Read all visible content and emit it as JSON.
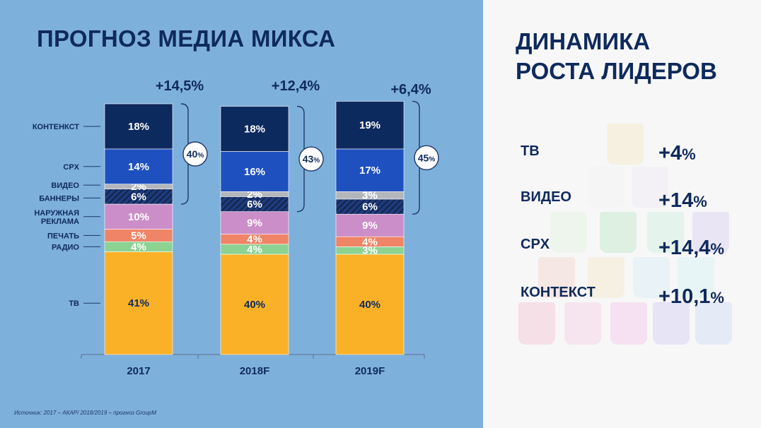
{
  "left_title": "ПРОГНОЗ МЕДИА МИКСА",
  "right_title_lines": [
    "ДИНАМИКА",
    "РОСТА ЛИДЕРОВ"
  ],
  "source": "Источник: 2017 – АКАР/ 2018/2019 – прогноз GroupM",
  "colors": {
    "left_bg": "#7eb0dc",
    "title": "#0f2a5c",
    "context": "#0d2a5e",
    "cpx": "#1e50c0",
    "video": "#b3b7bc",
    "banners": "#1e3a7a",
    "outdoor": "#cc8ec8",
    "print": "#f08466",
    "radio": "#8cd293",
    "tv": "#fbb127"
  },
  "chart_data": {
    "type": "bar",
    "stacked": true,
    "categories": [
      "2017",
      "2018F",
      "2019F"
    ],
    "series": [
      {
        "name": "ТВ",
        "values": [
          41,
          40,
          40
        ],
        "labels": [
          "41%",
          "40%",
          "40%"
        ]
      },
      {
        "name": "РАДИО",
        "values": [
          4,
          4,
          3
        ],
        "labels": [
          "4%",
          "4%",
          "3%"
        ]
      },
      {
        "name": "ПЕЧАТЬ",
        "values": [
          5,
          4,
          4
        ],
        "labels": [
          "5%",
          "4%",
          "4%"
        ]
      },
      {
        "name": "НАРУЖНАЯ РЕКЛАМА",
        "values": [
          10,
          9,
          9
        ],
        "labels": [
          "10%",
          "9%",
          "9%"
        ]
      },
      {
        "name": "БАННЕРЫ",
        "values": [
          6,
          6,
          6
        ],
        "labels": [
          "6%",
          "6%",
          "6%"
        ]
      },
      {
        "name": "ВИДЕО",
        "values": [
          2,
          2,
          3
        ],
        "labels": [
          "2%",
          "2%",
          "3%"
        ]
      },
      {
        "name": "CPX",
        "values": [
          14,
          16,
          17
        ],
        "labels": [
          "14%",
          "16%",
          "17%"
        ]
      },
      {
        "name": "КОНТЕНКСТ",
        "values": [
          18,
          18,
          19
        ],
        "labels": [
          "18%",
          "18%",
          "19%"
        ]
      }
    ],
    "legend_labels": [
      {
        "key": "КОНТЕНКСТ"
      },
      {
        "key": "CPX"
      },
      {
        "key": "ВИДЕО"
      },
      {
        "key": "БАННЕРЫ"
      },
      {
        "key": "НАРУЖНАЯ",
        "line2": "РЕКЛАМА"
      },
      {
        "key": "ПЕЧАТЬ"
      },
      {
        "key": "РАДИО"
      },
      {
        "key": "ТВ"
      }
    ],
    "growth_labels": [
      "+14,5%",
      "+12,4%",
      "+6,4%"
    ],
    "digital_share": [
      {
        "value": "40",
        "unit": "%"
      },
      {
        "value": "43",
        "unit": "%"
      },
      {
        "value": "45",
        "unit": "%"
      }
    ],
    "legend": "left",
    "grid": false
  },
  "leaders": [
    {
      "label": "ТВ",
      "value": "+4",
      "unit": "%"
    },
    {
      "label": "ВИДЕО",
      "value": "+14",
      "unit": "%"
    },
    {
      "label": "CPX",
      "value": "+14,4",
      "unit": "%"
    },
    {
      "label": "КОНТЕКСТ",
      "value": "+10,1",
      "unit": "%"
    }
  ]
}
